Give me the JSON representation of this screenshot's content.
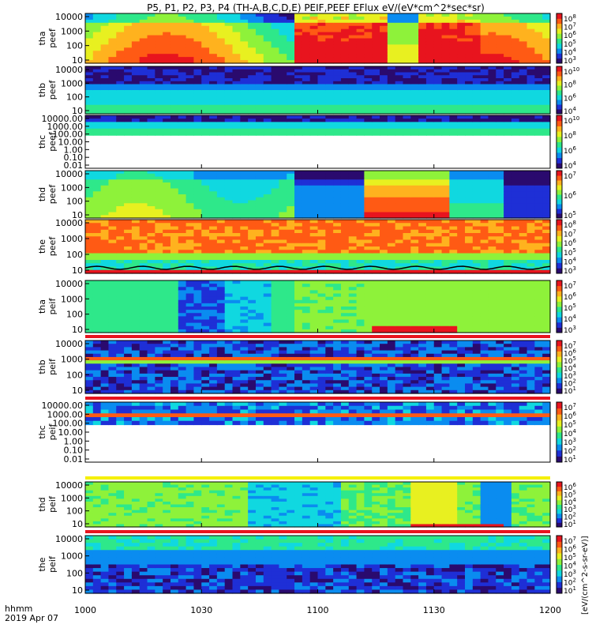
{
  "title": "P5, P1, P2, P3, P4 (TH-A,B,C,D,E) PEIF,PEEF EFlux eV/(eV*cm^2*sec*sr)",
  "colorbar_unit_label": "[eV/(cm^2-s-sr-eV)]",
  "time_axis": {
    "label_line1": "hhmm",
    "label_line2": "2019 Apr 07",
    "range": [
      "1000",
      "1200"
    ],
    "ticks": [
      "1000",
      "1030",
      "1100",
      "1130",
      "1200"
    ]
  },
  "colormap": [
    "#2a0a6e",
    "#1e2fd6",
    "#0a8cf0",
    "#10d8e0",
    "#2ee88a",
    "#8ef23a",
    "#e8f020",
    "#ffb21e",
    "#ff5a14",
    "#e8141e"
  ],
  "chart_data": [
    {
      "type": "heatmap",
      "name": "tha_peef",
      "ylabel_line1": "tha",
      "ylabel_line2": "peef",
      "yticks": [
        "10000",
        "1000",
        "100",
        "10"
      ],
      "ylog": true,
      "cb_ticks": [
        "10^8",
        "10^7",
        "10^6",
        "10^5",
        "10^4",
        "10^3"
      ],
      "pattern": "tha_e",
      "overlay": "none"
    },
    {
      "type": "heatmap",
      "name": "thb_peef",
      "ylabel_line1": "thb",
      "ylabel_line2": "peef",
      "yticks": [
        "10000",
        "1000",
        "100",
        "10"
      ],
      "ylog": true,
      "cb_ticks": [
        "10^10",
        "10^8",
        "10^6",
        "10^4"
      ],
      "pattern": "thb_e",
      "overlay": "none"
    },
    {
      "type": "heatmap",
      "name": "thc_peef",
      "ylabel_line1": "thc",
      "ylabel_line2": "peef",
      "yticks": [
        "10000.00",
        "1000.00",
        "100.00",
        "10.00",
        "1.00",
        "0.10",
        "0.01"
      ],
      "ylog": true,
      "cb_ticks": [
        "10^10",
        "10^8",
        "10^6",
        "10^4"
      ],
      "pattern": "thc_e",
      "overlay": "none"
    },
    {
      "type": "heatmap",
      "name": "thd_peef",
      "ylabel_line1": "thd",
      "ylabel_line2": "peef",
      "yticks": [
        "10000",
        "1000",
        "100",
        "10"
      ],
      "ylog": true,
      "cb_ticks": [
        "10^7",
        "10^6",
        "10^5"
      ],
      "pattern": "thd_e",
      "overlay": "none"
    },
    {
      "type": "heatmap",
      "name": "the_peef",
      "ylabel_line1": "the",
      "ylabel_line2": "peef",
      "yticks": [
        "10000",
        "1000",
        "100",
        "10"
      ],
      "ylog": true,
      "cb_ticks": [
        "10^8",
        "10^7",
        "10^6",
        "10^5",
        "10^4",
        "10^3"
      ],
      "pattern": "the_e",
      "overlay": "black_line"
    },
    {
      "type": "heatmap",
      "name": "tha_peif",
      "ylabel_line1": "tha",
      "ylabel_line2": "peif",
      "yticks": [
        "10000",
        "1000",
        "100",
        "10"
      ],
      "ylog": true,
      "cb_ticks": [
        "10^7",
        "10^6",
        "10^5",
        "10^4",
        "10^3"
      ],
      "pattern": "tha_i",
      "overlay": "none"
    },
    {
      "type": "heatmap",
      "name": "thb_peif",
      "ylabel_line1": "thb",
      "ylabel_line2": "peif",
      "yticks": [
        "10000",
        "1000",
        "100",
        "10"
      ],
      "ylog": true,
      "cb_ticks": [
        "10^7",
        "10^6",
        "10^5",
        "10^4",
        "10^3",
        "10^2",
        "10^1"
      ],
      "pattern": "thb_i",
      "overlay": "red_band"
    },
    {
      "type": "heatmap",
      "name": "thc_peif",
      "ylabel_line1": "thc",
      "ylabel_line2": "peif",
      "yticks": [
        "10000.00",
        "1000.00",
        "100.00",
        "10.00",
        "1.00",
        "0.10",
        "0.01"
      ],
      "ylog": true,
      "cb_ticks": [
        "10^7",
        "10^6",
        "10^5",
        "10^4",
        "10^3",
        "10^2",
        "10^1"
      ],
      "pattern": "thc_i",
      "overlay": "red_band"
    },
    {
      "type": "heatmap",
      "name": "thd_peif",
      "ylabel_line1": "thd",
      "ylabel_line2": "peif",
      "yticks": [
        "10000",
        "1000",
        "100",
        "10"
      ],
      "ylog": true,
      "cb_ticks": [
        "10^6",
        "10^5",
        "10^4",
        "10^3",
        "10^2",
        "10^1"
      ],
      "pattern": "thd_i",
      "overlay": "yellow_band"
    },
    {
      "type": "heatmap",
      "name": "the_peif",
      "ylabel_line1": "the",
      "ylabel_line2": "peif",
      "yticks": [
        "10000",
        "1000",
        "100",
        "10"
      ],
      "ylog": true,
      "cb_ticks": [
        "10^7",
        "10^6",
        "10^5",
        "10^4",
        "10^3",
        "10^2",
        "10^1"
      ],
      "pattern": "the_i",
      "overlay": "red_band"
    }
  ]
}
